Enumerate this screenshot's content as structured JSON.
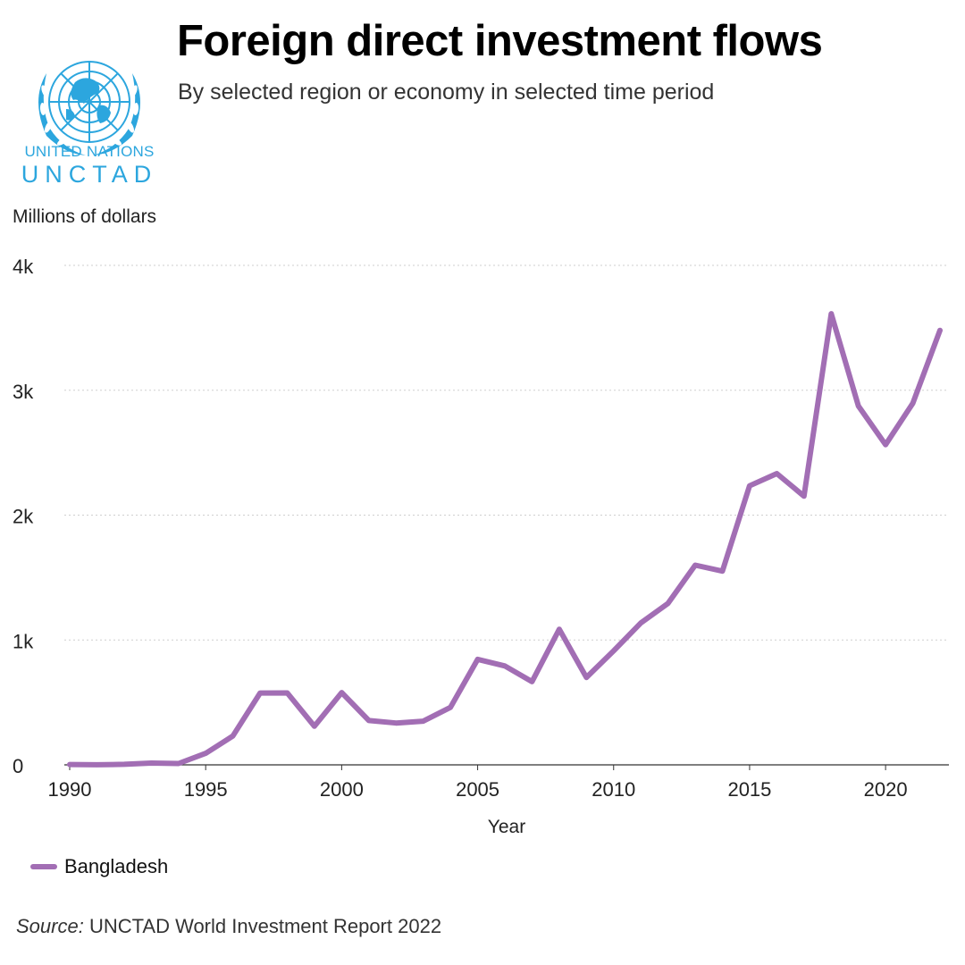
{
  "header": {
    "title": "Foreign direct investment flows",
    "subtitle": "By selected region or economy in selected time period"
  },
  "logo": {
    "line1": "UNITED NATIONS",
    "line2": "UNCTAD",
    "color": "#2ca6de"
  },
  "footer": {
    "source_label": "Source:",
    "source_text": " UNCTAD World Investment Report 2022"
  },
  "chart_data": {
    "type": "line",
    "ylabel": "Millions of dollars",
    "xlabel": "Year",
    "xlim": [
      1990,
      2022
    ],
    "ylim": [
      0,
      4000
    ],
    "x_ticks": [
      "1990",
      "1995",
      "2000",
      "2005",
      "2010",
      "2015",
      "2020"
    ],
    "y_ticks": [
      "0",
      "1k",
      "2k",
      "3k",
      "4k"
    ],
    "grid": true,
    "legend_position": "bottom-left",
    "series": [
      {
        "name": "Bangladesh",
        "color": "#a26eb4",
        "x": [
          1990,
          1991,
          1992,
          1993,
          1994,
          1995,
          1996,
          1997,
          1998,
          1999,
          2000,
          2001,
          2002,
          2003,
          2004,
          2005,
          2006,
          2007,
          2008,
          2009,
          2010,
          2011,
          2012,
          2013,
          2014,
          2015,
          2016,
          2017,
          2018,
          2019,
          2020,
          2021,
          2022
        ],
        "values": [
          3,
          1,
          4,
          14,
          11,
          92,
          231,
          575,
          576,
          309,
          579,
          355,
          335,
          350,
          460,
          845,
          792,
          666,
          1086,
          700,
          913,
          1136,
          1293,
          1599,
          1551,
          2235,
          2333,
          2152,
          3613,
          2874,
          2564,
          2896,
          3480
        ]
      }
    ]
  }
}
